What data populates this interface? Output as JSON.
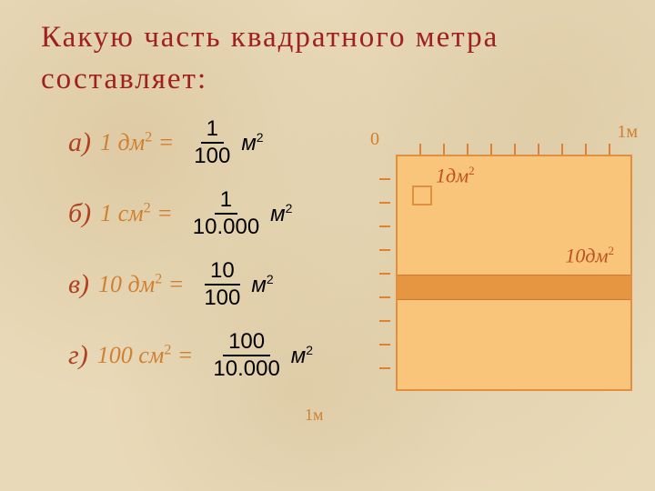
{
  "title": "Какую часть квадратного метра составляет:",
  "problems": [
    {
      "letter": "а)",
      "question": "1 дм2 =",
      "num": "1",
      "den": "100",
      "unit": "м",
      "exp": "2"
    },
    {
      "letter": "б)",
      "question": "1 см2 =",
      "num": "1",
      "den": "10.000",
      "unit": "м",
      "exp": "2"
    },
    {
      "letter": "в)",
      "question": "10 дм2 =",
      "num": "10",
      "den": "100",
      "unit": "м",
      "exp": "2"
    },
    {
      "letter": "г)",
      "question": "100 см2 =",
      "num": "100",
      "den": "10.000",
      "unit": "м",
      "exp": "2"
    }
  ],
  "diagram": {
    "zero": "0",
    "one_m_top": "1м",
    "one_m_bottom": "1м",
    "small_square_label": "1дм",
    "small_square_exp": "2",
    "strip_label": "10дм",
    "strip_exp": "2",
    "tick_count": 10,
    "colors": {
      "bg": "#e8d9b8",
      "accent": "#d08030",
      "title": "#a02020",
      "square_fill": "#f8c57a",
      "square_border": "#e09040",
      "strip_fill": "#e69640",
      "text_red": "#c05020"
    }
  }
}
